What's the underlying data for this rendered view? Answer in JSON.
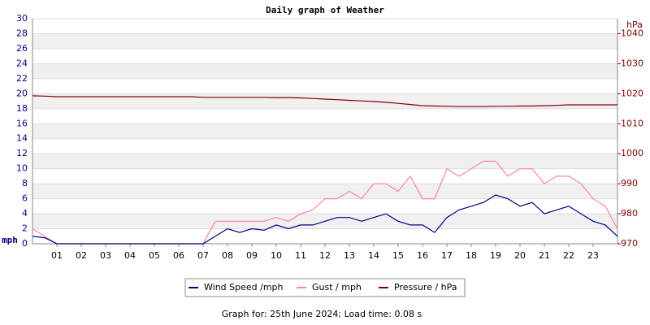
{
  "chart_data": {
    "type": "line",
    "title": "Daily graph of Weather",
    "y_label": "mph",
    "y2_label": "hPa",
    "footer": "Graph for: 25th June 2024; Load time: 0.08 s",
    "x": [
      0,
      0.5,
      1,
      1.5,
      2,
      2.5,
      3,
      3.5,
      4,
      4.5,
      5,
      5.5,
      6,
      6.5,
      7,
      7.5,
      8,
      8.5,
      9,
      9.5,
      10,
      10.5,
      11,
      11.5,
      12,
      12.5,
      13,
      13.5,
      14,
      14.5,
      15,
      15.5,
      16,
      16.5,
      17,
      17.5,
      18,
      18.5,
      19,
      19.5,
      20,
      20.5,
      21,
      21.5,
      22,
      22.5,
      23,
      23.5,
      24
    ],
    "xlim": [
      0,
      24
    ],
    "xticks": [
      {
        "value": 1,
        "label": "01"
      },
      {
        "value": 2,
        "label": "02"
      },
      {
        "value": 3,
        "label": "03"
      },
      {
        "value": 4,
        "label": "04"
      },
      {
        "value": 5,
        "label": "05"
      },
      {
        "value": 6,
        "label": "06"
      },
      {
        "value": 7,
        "label": "07"
      },
      {
        "value": 8,
        "label": "08"
      },
      {
        "value": 9,
        "label": "09"
      },
      10,
      11,
      12,
      13,
      14,
      15,
      16,
      17,
      18,
      19,
      20,
      21,
      22,
      23
    ],
    "ylim": [
      0,
      30
    ],
    "yticks": [
      0,
      2,
      4,
      6,
      8,
      10,
      12,
      14,
      16,
      18,
      20,
      22,
      24,
      26,
      28,
      30
    ],
    "y2lim": [
      970,
      1045
    ],
    "y2ticks": [
      970,
      980,
      990,
      1000,
      1010,
      1020,
      1030,
      1040
    ],
    "grid": true,
    "legend": "bottom",
    "series": [
      {
        "name": "Wind Speed /mph",
        "color": "#000080",
        "axis": "y",
        "values": [
          1,
          0.8,
          0,
          0,
          0,
          0,
          0,
          0,
          0,
          0,
          0,
          0,
          0,
          0,
          0,
          1,
          2,
          1.5,
          2,
          1.8,
          2.5,
          2,
          2.5,
          2.5,
          3,
          3.5,
          3.5,
          3,
          3.5,
          4,
          3,
          2.5,
          2.5,
          1.5,
          3.5,
          4.5,
          5,
          5.5,
          6.5,
          6,
          5,
          5.5,
          4,
          4.5,
          5,
          4,
          3,
          2.5,
          1
        ]
      },
      {
        "name": "Gust / mph",
        "color": "#ff80b0",
        "axis": "y",
        "values": [
          2,
          1,
          0,
          0,
          0,
          0,
          0,
          0,
          0,
          0,
          0,
          0,
          0,
          0,
          0,
          3,
          3,
          3,
          3,
          3,
          3.5,
          3,
          4,
          4.5,
          6,
          6,
          7,
          6,
          8,
          8,
          7,
          9,
          6,
          6,
          10,
          9,
          10,
          11,
          11,
          9,
          10,
          10,
          8,
          9,
          9,
          8,
          6,
          5,
          2
        ]
      },
      {
        "name": "Pressure / hPa",
        "color": "#800000",
        "axis": "y2",
        "values": [
          1019.3,
          1019.2,
          1019,
          1019,
          1019,
          1019,
          1019,
          1019,
          1019,
          1019,
          1019,
          1019,
          1019,
          1019,
          1018.8,
          1018.8,
          1018.8,
          1018.8,
          1018.8,
          1018.8,
          1018.7,
          1018.7,
          1018.6,
          1018.4,
          1018.2,
          1018,
          1017.8,
          1017.6,
          1017.4,
          1017.1,
          1016.8,
          1016.4,
          1016,
          1015.9,
          1015.8,
          1015.7,
          1015.7,
          1015.7,
          1015.8,
          1015.8,
          1015.9,
          1015.9,
          1016,
          1016.1,
          1016.3,
          1016.3,
          1016.3,
          1016.3,
          1016.3
        ]
      }
    ]
  }
}
